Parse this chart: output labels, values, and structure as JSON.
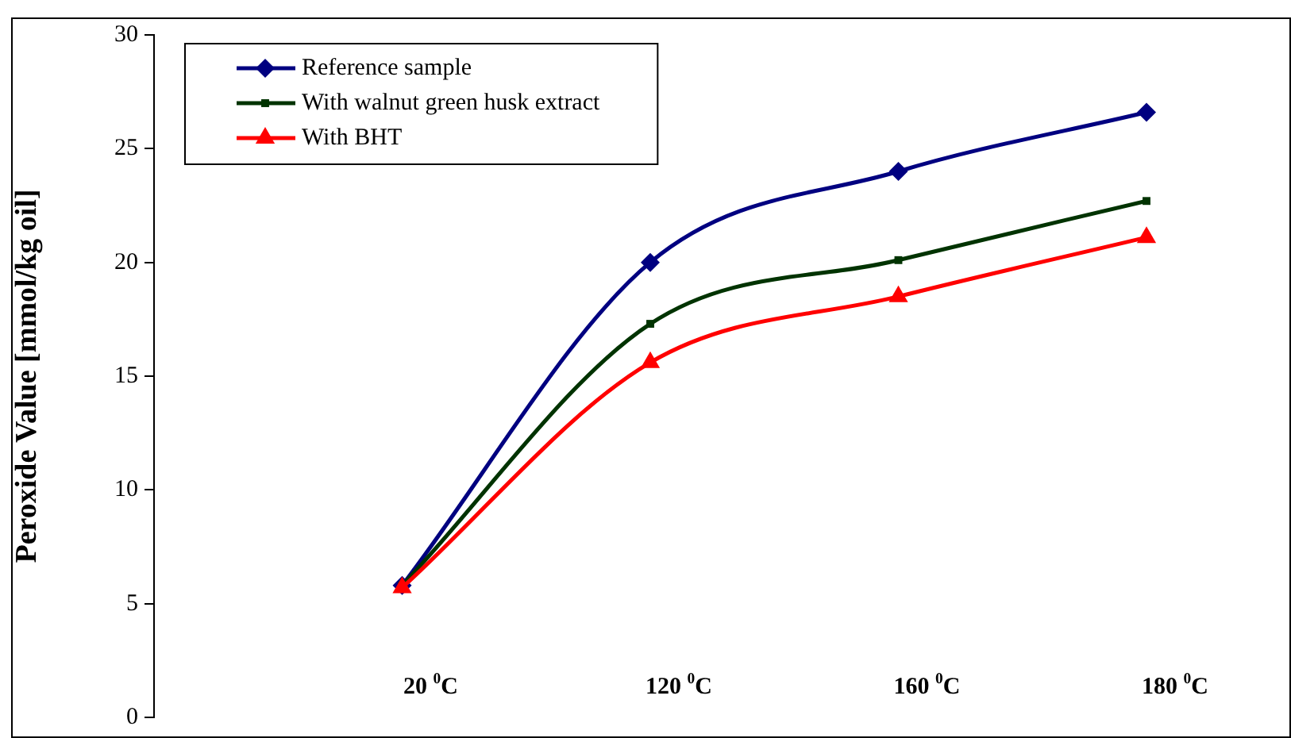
{
  "chart_data": {
    "type": "line",
    "ylabel": "Peroxide Value [mmol/kg oil]",
    "categories": [
      null,
      "20 $^{0}$C",
      "120 $^{0}$C",
      "160 $^{0}$C",
      "180 $^{0}$C"
    ],
    "series": [
      {
        "name": "Reference sample",
        "color": "#000080",
        "marker": "diamond",
        "values": [
          null,
          5.8,
          20.0,
          24.0,
          26.6
        ]
      },
      {
        "name": "With walnut green husk extract",
        "color": "#003300",
        "marker": "square",
        "values": [
          null,
          5.8,
          17.3,
          20.1,
          22.7
        ]
      },
      {
        "name": "With BHT",
        "color": "#ff0000",
        "marker": "triangle",
        "values": [
          null,
          5.7,
          15.6,
          18.5,
          21.1
        ]
      }
    ],
    "ylim": [
      0,
      30
    ],
    "yticks": [
      0,
      5,
      10,
      15,
      20,
      25,
      30
    ],
    "grid": false,
    "legend": "top left",
    "line_style": "solid"
  }
}
